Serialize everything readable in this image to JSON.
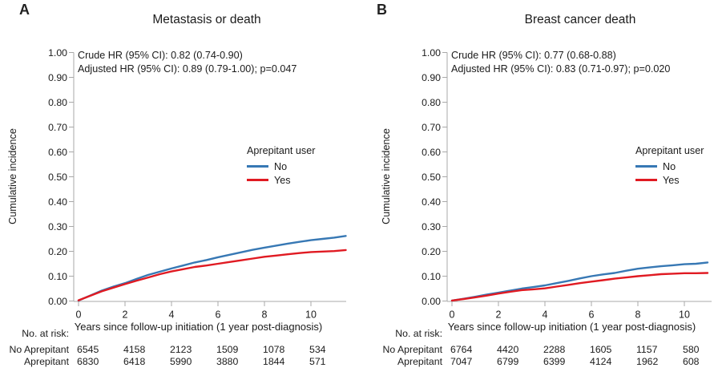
{
  "figure": {
    "background": "#ffffff",
    "text_color": "#1b1b1b",
    "axis_color": "#a8a8a8"
  },
  "chart_data": [
    {
      "type": "line",
      "panel_label": "A",
      "title": "Metastasis or death",
      "annotations": [
        "Crude HR (95% CI): 0.82 (0.74-0.90)",
        "Adjusted HR (95% CI): 0.89 (0.79-1.00); p=0.047"
      ],
      "xlabel": "Years since follow-up initiation (1 year post-diagnosis)",
      "ylabel": "Cumulative incidence",
      "xlim": [
        0,
        11.7
      ],
      "ylim": [
        0,
        1.0
      ],
      "grid": false,
      "x_ticks": [
        "0",
        "2",
        "4",
        "6",
        "8",
        "10"
      ],
      "y_ticks": [
        "0.00",
        "0.10",
        "0.20",
        "0.30",
        "0.40",
        "0.50",
        "0.60",
        "0.70",
        "0.80",
        "0.90",
        "1.00"
      ],
      "legend": {
        "title": "Aprepitant user",
        "position": "right-middle",
        "entries": [
          {
            "label": "No",
            "color": "#3778B4"
          },
          {
            "label": "Yes",
            "color": "#E01A22"
          }
        ]
      },
      "series": [
        {
          "name": "No",
          "color": "#3778B4",
          "x": [
            0,
            0.5,
            1,
            1.5,
            2,
            2.5,
            3,
            3.5,
            4,
            4.5,
            5,
            5.5,
            6,
            6.5,
            7,
            7.5,
            8,
            8.5,
            9,
            9.5,
            10,
            10.5,
            11,
            11.5
          ],
          "y": [
            0.002,
            0.022,
            0.042,
            0.058,
            0.072,
            0.089,
            0.105,
            0.118,
            0.131,
            0.143,
            0.155,
            0.165,
            0.176,
            0.186,
            0.196,
            0.206,
            0.215,
            0.223,
            0.231,
            0.238,
            0.245,
            0.25,
            0.255,
            0.262
          ]
        },
        {
          "name": "Yes",
          "color": "#E01A22",
          "x": [
            0,
            0.5,
            1,
            1.5,
            2,
            2.5,
            3,
            3.5,
            4,
            4.5,
            5,
            5.5,
            6,
            6.5,
            7,
            7.5,
            8,
            8.5,
            9,
            9.5,
            10,
            10.5,
            11,
            11.5
          ],
          "y": [
            0.003,
            0.021,
            0.039,
            0.054,
            0.068,
            0.082,
            0.095,
            0.108,
            0.119,
            0.128,
            0.137,
            0.143,
            0.15,
            0.157,
            0.164,
            0.171,
            0.178,
            0.183,
            0.188,
            0.193,
            0.197,
            0.199,
            0.201,
            0.205
          ]
        }
      ],
      "risk_table": {
        "caption": "No. at risk:",
        "rows": [
          {
            "label": "No Aprepitant",
            "values": [
              "6545",
              "4158",
              "2123",
              "1509",
              "1078",
              "534"
            ]
          },
          {
            "label": "Aprepitant",
            "values": [
              "6830",
              "6418",
              "5990",
              "3880",
              "1844",
              "571"
            ]
          }
        ]
      }
    },
    {
      "type": "line",
      "panel_label": "B",
      "title": "Breast cancer death",
      "annotations": [
        "Crude HR (95% CI): 0.77 (0.68-0.88)",
        "Adjusted HR (95% CI): 0.83 (0.71-0.97); p=0.020"
      ],
      "xlabel": "Years since follow-up initiation (1 year post-diagnosis)",
      "ylabel": "Cumulative incidence",
      "xlim": [
        0,
        11.4
      ],
      "ylim": [
        0,
        1.0
      ],
      "grid": false,
      "x_ticks": [
        "0",
        "2",
        "4",
        "6",
        "8",
        "10"
      ],
      "y_ticks": [
        "0.00",
        "0.10",
        "0.20",
        "0.30",
        "0.40",
        "0.50",
        "0.60",
        "0.70",
        "0.80",
        "0.90",
        "1.00"
      ],
      "legend": {
        "title": "Aprepitant user",
        "position": "right-middle",
        "entries": [
          {
            "label": "No",
            "color": "#3778B4"
          },
          {
            "label": "Yes",
            "color": "#E01A22"
          }
        ]
      },
      "series": [
        {
          "name": "No",
          "color": "#3778B4",
          "x": [
            0,
            0.5,
            1,
            1.5,
            2,
            2.5,
            3,
            3.5,
            4,
            4.5,
            5,
            5.5,
            6,
            6.5,
            7,
            7.5,
            8,
            8.5,
            9,
            9.5,
            10,
            10.5,
            11
          ],
          "y": [
            0.002,
            0.009,
            0.017,
            0.026,
            0.034,
            0.042,
            0.05,
            0.056,
            0.063,
            0.072,
            0.081,
            0.091,
            0.1,
            0.107,
            0.113,
            0.122,
            0.13,
            0.135,
            0.14,
            0.144,
            0.148,
            0.15,
            0.155
          ]
        },
        {
          "name": "Yes",
          "color": "#E01A22",
          "x": [
            0,
            0.5,
            1,
            1.5,
            2,
            2.5,
            3,
            3.5,
            4,
            4.5,
            5,
            5.5,
            6,
            6.5,
            7,
            7.5,
            8,
            8.5,
            9,
            9.5,
            10,
            10.5,
            11
          ],
          "y": [
            0.002,
            0.008,
            0.015,
            0.022,
            0.03,
            0.037,
            0.044,
            0.047,
            0.051,
            0.058,
            0.065,
            0.072,
            0.078,
            0.084,
            0.09,
            0.095,
            0.1,
            0.104,
            0.108,
            0.11,
            0.112,
            0.112,
            0.113
          ]
        }
      ],
      "risk_table": {
        "caption": "No. at risk:",
        "rows": [
          {
            "label": "No Aprepitant",
            "values": [
              "6764",
              "4420",
              "2288",
              "1605",
              "1157",
              "580"
            ]
          },
          {
            "label": "Aprepitant",
            "values": [
              "7047",
              "6799",
              "6399",
              "4124",
              "1962",
              "608"
            ]
          }
        ]
      }
    }
  ]
}
